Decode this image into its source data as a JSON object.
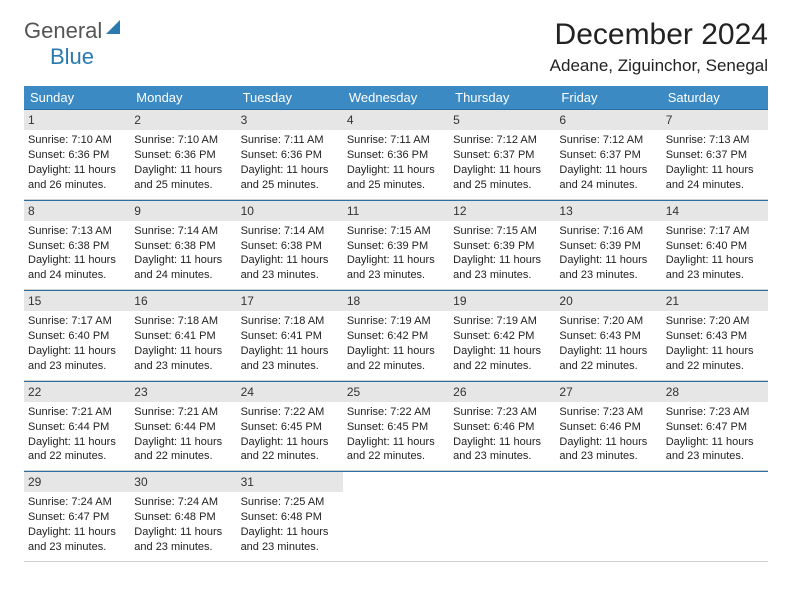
{
  "logo": {
    "word1": "General",
    "word2": "Blue"
  },
  "title": {
    "month": "December 2024",
    "location": "Adeane, Ziguinchor, Senegal"
  },
  "style": {
    "header_bg": "#3b8ac4",
    "week_border_top": "#2a6fa3",
    "daynum_bg": "#e6e6e6",
    "page_bg": "#ffffff",
    "title_fontsize": 30,
    "loc_fontsize": 17,
    "dayheader_fontsize": 13,
    "cell_fontsize": 11
  },
  "day_names": [
    "Sunday",
    "Monday",
    "Tuesday",
    "Wednesday",
    "Thursday",
    "Friday",
    "Saturday"
  ],
  "weeks": [
    [
      {
        "n": "1",
        "sr": "7:10 AM",
        "ss": "6:36 PM",
        "dl": "11 hours and 26 minutes."
      },
      {
        "n": "2",
        "sr": "7:10 AM",
        "ss": "6:36 PM",
        "dl": "11 hours and 25 minutes."
      },
      {
        "n": "3",
        "sr": "7:11 AM",
        "ss": "6:36 PM",
        "dl": "11 hours and 25 minutes."
      },
      {
        "n": "4",
        "sr": "7:11 AM",
        "ss": "6:36 PM",
        "dl": "11 hours and 25 minutes."
      },
      {
        "n": "5",
        "sr": "7:12 AM",
        "ss": "6:37 PM",
        "dl": "11 hours and 25 minutes."
      },
      {
        "n": "6",
        "sr": "7:12 AM",
        "ss": "6:37 PM",
        "dl": "11 hours and 24 minutes."
      },
      {
        "n": "7",
        "sr": "7:13 AM",
        "ss": "6:37 PM",
        "dl": "11 hours and 24 minutes."
      }
    ],
    [
      {
        "n": "8",
        "sr": "7:13 AM",
        "ss": "6:38 PM",
        "dl": "11 hours and 24 minutes."
      },
      {
        "n": "9",
        "sr": "7:14 AM",
        "ss": "6:38 PM",
        "dl": "11 hours and 24 minutes."
      },
      {
        "n": "10",
        "sr": "7:14 AM",
        "ss": "6:38 PM",
        "dl": "11 hours and 23 minutes."
      },
      {
        "n": "11",
        "sr": "7:15 AM",
        "ss": "6:39 PM",
        "dl": "11 hours and 23 minutes."
      },
      {
        "n": "12",
        "sr": "7:15 AM",
        "ss": "6:39 PM",
        "dl": "11 hours and 23 minutes."
      },
      {
        "n": "13",
        "sr": "7:16 AM",
        "ss": "6:39 PM",
        "dl": "11 hours and 23 minutes."
      },
      {
        "n": "14",
        "sr": "7:17 AM",
        "ss": "6:40 PM",
        "dl": "11 hours and 23 minutes."
      }
    ],
    [
      {
        "n": "15",
        "sr": "7:17 AM",
        "ss": "6:40 PM",
        "dl": "11 hours and 23 minutes."
      },
      {
        "n": "16",
        "sr": "7:18 AM",
        "ss": "6:41 PM",
        "dl": "11 hours and 23 minutes."
      },
      {
        "n": "17",
        "sr": "7:18 AM",
        "ss": "6:41 PM",
        "dl": "11 hours and 23 minutes."
      },
      {
        "n": "18",
        "sr": "7:19 AM",
        "ss": "6:42 PM",
        "dl": "11 hours and 22 minutes."
      },
      {
        "n": "19",
        "sr": "7:19 AM",
        "ss": "6:42 PM",
        "dl": "11 hours and 22 minutes."
      },
      {
        "n": "20",
        "sr": "7:20 AM",
        "ss": "6:43 PM",
        "dl": "11 hours and 22 minutes."
      },
      {
        "n": "21",
        "sr": "7:20 AM",
        "ss": "6:43 PM",
        "dl": "11 hours and 22 minutes."
      }
    ],
    [
      {
        "n": "22",
        "sr": "7:21 AM",
        "ss": "6:44 PM",
        "dl": "11 hours and 22 minutes."
      },
      {
        "n": "23",
        "sr": "7:21 AM",
        "ss": "6:44 PM",
        "dl": "11 hours and 22 minutes."
      },
      {
        "n": "24",
        "sr": "7:22 AM",
        "ss": "6:45 PM",
        "dl": "11 hours and 22 minutes."
      },
      {
        "n": "25",
        "sr": "7:22 AM",
        "ss": "6:45 PM",
        "dl": "11 hours and 22 minutes."
      },
      {
        "n": "26",
        "sr": "7:23 AM",
        "ss": "6:46 PM",
        "dl": "11 hours and 23 minutes."
      },
      {
        "n": "27",
        "sr": "7:23 AM",
        "ss": "6:46 PM",
        "dl": "11 hours and 23 minutes."
      },
      {
        "n": "28",
        "sr": "7:23 AM",
        "ss": "6:47 PM",
        "dl": "11 hours and 23 minutes."
      }
    ],
    [
      {
        "n": "29",
        "sr": "7:24 AM",
        "ss": "6:47 PM",
        "dl": "11 hours and 23 minutes."
      },
      {
        "n": "30",
        "sr": "7:24 AM",
        "ss": "6:48 PM",
        "dl": "11 hours and 23 minutes."
      },
      {
        "n": "31",
        "sr": "7:25 AM",
        "ss": "6:48 PM",
        "dl": "11 hours and 23 minutes."
      },
      {
        "empty": true
      },
      {
        "empty": true
      },
      {
        "empty": true
      },
      {
        "empty": true
      }
    ]
  ],
  "labels": {
    "sunrise": "Sunrise:",
    "sunset": "Sunset:",
    "daylight": "Daylight:"
  }
}
